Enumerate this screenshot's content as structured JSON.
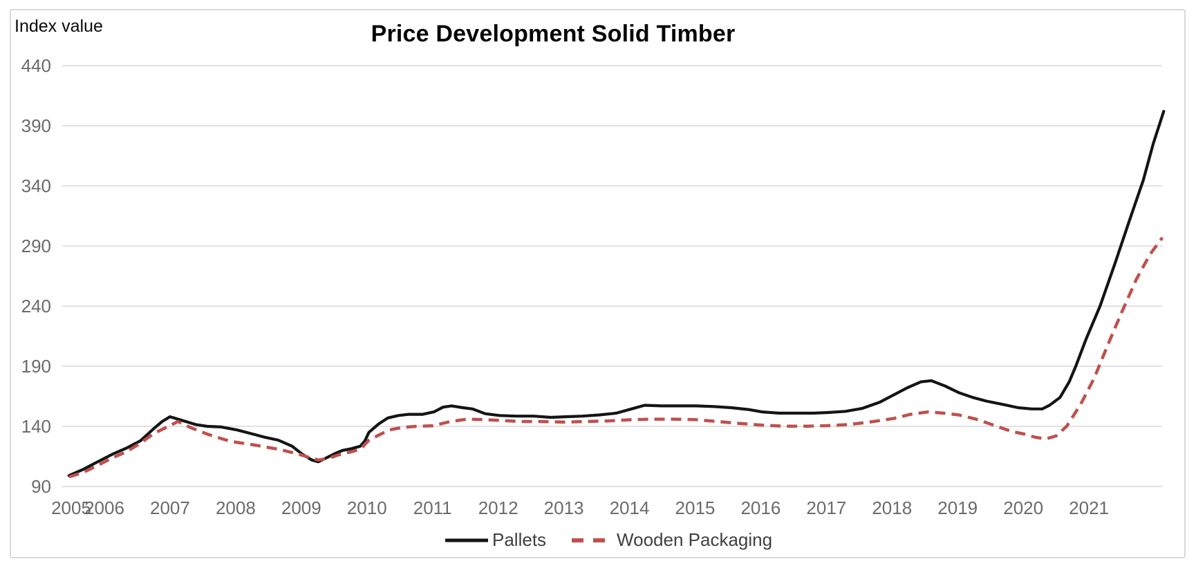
{
  "header": {
    "title": "Price Development Solid Timber",
    "y_axis_title": "Index value"
  },
  "legend": [
    {
      "label": "Pallets",
      "color": "#141414",
      "dashed": false
    },
    {
      "label": "Wooden Packaging",
      "color": "#bf504d",
      "dashed": true
    }
  ],
  "colors": {
    "pallets_line": "#141414",
    "wooden_packaging_line": "#bf504d",
    "gridline": "#d9d9d9",
    "tick_label": "#6b6b6b",
    "legend_text": "#3f3f3f"
  },
  "chart_data": {
    "type": "line",
    "title": "Price Development Solid Timber",
    "ylabel": "Index value",
    "xlabel": "",
    "ylim": [
      90,
      440
    ],
    "yticks": [
      440,
      390,
      340,
      290,
      240,
      190,
      140,
      90
    ],
    "xtick_years": [
      2005,
      2006,
      2007,
      2008,
      2009,
      2010,
      2011,
      2012,
      2013,
      2014,
      2015,
      2016,
      2017,
      2018,
      2019,
      2020,
      2021
    ],
    "grid": "horizontal",
    "legend_position": "bottom",
    "x_unit": "year (fractional = month position)",
    "series": [
      {
        "name": "Pallets",
        "style": "solid",
        "color": "#141414",
        "points": [
          [
            2005.46,
            99
          ],
          [
            2005.67,
            104
          ],
          [
            2005.88,
            110
          ],
          [
            2006.13,
            117
          ],
          [
            2006.34,
            122
          ],
          [
            2006.55,
            128
          ],
          [
            2006.75,
            138
          ],
          [
            2006.88,
            144
          ],
          [
            2007.0,
            148
          ],
          [
            2007.15,
            145.5
          ],
          [
            2007.39,
            141.5
          ],
          [
            2007.57,
            140
          ],
          [
            2007.78,
            139.5
          ],
          [
            2008.02,
            137
          ],
          [
            2008.23,
            134
          ],
          [
            2008.44,
            131
          ],
          [
            2008.65,
            128.5
          ],
          [
            2008.86,
            123.5
          ],
          [
            2009.01,
            117
          ],
          [
            2009.16,
            112
          ],
          [
            2009.26,
            110.5
          ],
          [
            2009.39,
            114
          ],
          [
            2009.52,
            117.5
          ],
          [
            2009.63,
            120
          ],
          [
            2009.77,
            121.5
          ],
          [
            2009.9,
            123.5
          ],
          [
            2009.97,
            128
          ],
          [
            2010.03,
            135
          ],
          [
            2010.18,
            142
          ],
          [
            2010.32,
            147
          ],
          [
            2010.48,
            149
          ],
          [
            2010.64,
            150
          ],
          [
            2010.85,
            150
          ],
          [
            2011.02,
            152
          ],
          [
            2011.16,
            156
          ],
          [
            2011.29,
            157
          ],
          [
            2011.46,
            155.5
          ],
          [
            2011.61,
            154.5
          ],
          [
            2011.8,
            150.5
          ],
          [
            2012.02,
            149
          ],
          [
            2012.27,
            148.5
          ],
          [
            2012.54,
            148.5
          ],
          [
            2012.8,
            147.5
          ],
          [
            2013.02,
            148
          ],
          [
            2013.28,
            148.5
          ],
          [
            2013.54,
            149.5
          ],
          [
            2013.8,
            151
          ],
          [
            2014.03,
            154.5
          ],
          [
            2014.23,
            157.5
          ],
          [
            2014.49,
            157
          ],
          [
            2014.75,
            157
          ],
          [
            2015.02,
            157
          ],
          [
            2015.28,
            156.5
          ],
          [
            2015.55,
            155.5
          ],
          [
            2015.81,
            154
          ],
          [
            2016.02,
            152
          ],
          [
            2016.28,
            151
          ],
          [
            2016.55,
            151
          ],
          [
            2016.81,
            151
          ],
          [
            2017.02,
            151.5
          ],
          [
            2017.29,
            152.5
          ],
          [
            2017.55,
            155
          ],
          [
            2017.81,
            160
          ],
          [
            2018.02,
            166
          ],
          [
            2018.23,
            172
          ],
          [
            2018.44,
            177
          ],
          [
            2018.6,
            178
          ],
          [
            2018.81,
            173.5
          ],
          [
            2019.02,
            168
          ],
          [
            2019.23,
            164
          ],
          [
            2019.44,
            161
          ],
          [
            2019.71,
            158
          ],
          [
            2019.92,
            155.5
          ],
          [
            2020.13,
            154.5
          ],
          [
            2020.29,
            154.5
          ],
          [
            2020.4,
            157.5
          ],
          [
            2020.56,
            164
          ],
          [
            2020.7,
            177
          ],
          [
            2020.8,
            190
          ],
          [
            2020.96,
            213
          ],
          [
            2021.17,
            240
          ],
          [
            2021.4,
            276
          ],
          [
            2021.61,
            310
          ],
          [
            2021.83,
            345
          ],
          [
            2021.98,
            375
          ],
          [
            2022.14,
            402
          ]
        ]
      },
      {
        "name": "Wooden Packaging",
        "style": "dashed",
        "color": "#bf504d",
        "points": [
          [
            2005.46,
            98
          ],
          [
            2005.67,
            101.5
          ],
          [
            2005.88,
            107
          ],
          [
            2006.13,
            114
          ],
          [
            2006.34,
            119
          ],
          [
            2006.55,
            126
          ],
          [
            2006.75,
            134
          ],
          [
            2006.94,
            139
          ],
          [
            2007.12,
            144
          ],
          [
            2007.31,
            139
          ],
          [
            2007.57,
            133.5
          ],
          [
            2007.92,
            127.5
          ],
          [
            2008.23,
            125
          ],
          [
            2008.44,
            123
          ],
          [
            2008.65,
            121
          ],
          [
            2008.95,
            117
          ],
          [
            2009.1,
            114.5
          ],
          [
            2009.26,
            112
          ],
          [
            2009.42,
            113.5
          ],
          [
            2009.58,
            116.5
          ],
          [
            2009.74,
            118.5
          ],
          [
            2009.9,
            121
          ],
          [
            2010.03,
            128.5
          ],
          [
            2010.19,
            133
          ],
          [
            2010.34,
            137
          ],
          [
            2010.53,
            139
          ],
          [
            2010.74,
            140
          ],
          [
            2011.01,
            140.5
          ],
          [
            2011.27,
            144
          ],
          [
            2011.53,
            146
          ],
          [
            2011.8,
            145.5
          ],
          [
            2012.02,
            145
          ],
          [
            2012.33,
            144
          ],
          [
            2012.64,
            144
          ],
          [
            2013.02,
            143.5
          ],
          [
            2013.33,
            144
          ],
          [
            2013.65,
            144.5
          ],
          [
            2014.03,
            145.5
          ],
          [
            2014.33,
            146
          ],
          [
            2014.7,
            146
          ],
          [
            2015.02,
            145.5
          ],
          [
            2015.34,
            144
          ],
          [
            2015.65,
            142.5
          ],
          [
            2016.02,
            141
          ],
          [
            2016.34,
            140.2
          ],
          [
            2016.71,
            140.2
          ],
          [
            2017.02,
            140.6
          ],
          [
            2017.34,
            141.5
          ],
          [
            2017.65,
            143.5
          ],
          [
            2018.02,
            146.5
          ],
          [
            2018.28,
            150
          ],
          [
            2018.55,
            152
          ],
          [
            2018.78,
            151
          ],
          [
            2019.02,
            149.5
          ],
          [
            2019.28,
            146
          ],
          [
            2019.55,
            141
          ],
          [
            2019.81,
            136
          ],
          [
            2020.02,
            133.5
          ],
          [
            2020.18,
            131
          ],
          [
            2020.34,
            129.5
          ],
          [
            2020.5,
            132
          ],
          [
            2020.66,
            140
          ],
          [
            2020.87,
            158
          ],
          [
            2021.08,
            180
          ],
          [
            2021.29,
            208
          ],
          [
            2021.5,
            235
          ],
          [
            2021.72,
            262
          ],
          [
            2021.93,
            283
          ],
          [
            2022.12,
            297
          ]
        ]
      }
    ]
  }
}
